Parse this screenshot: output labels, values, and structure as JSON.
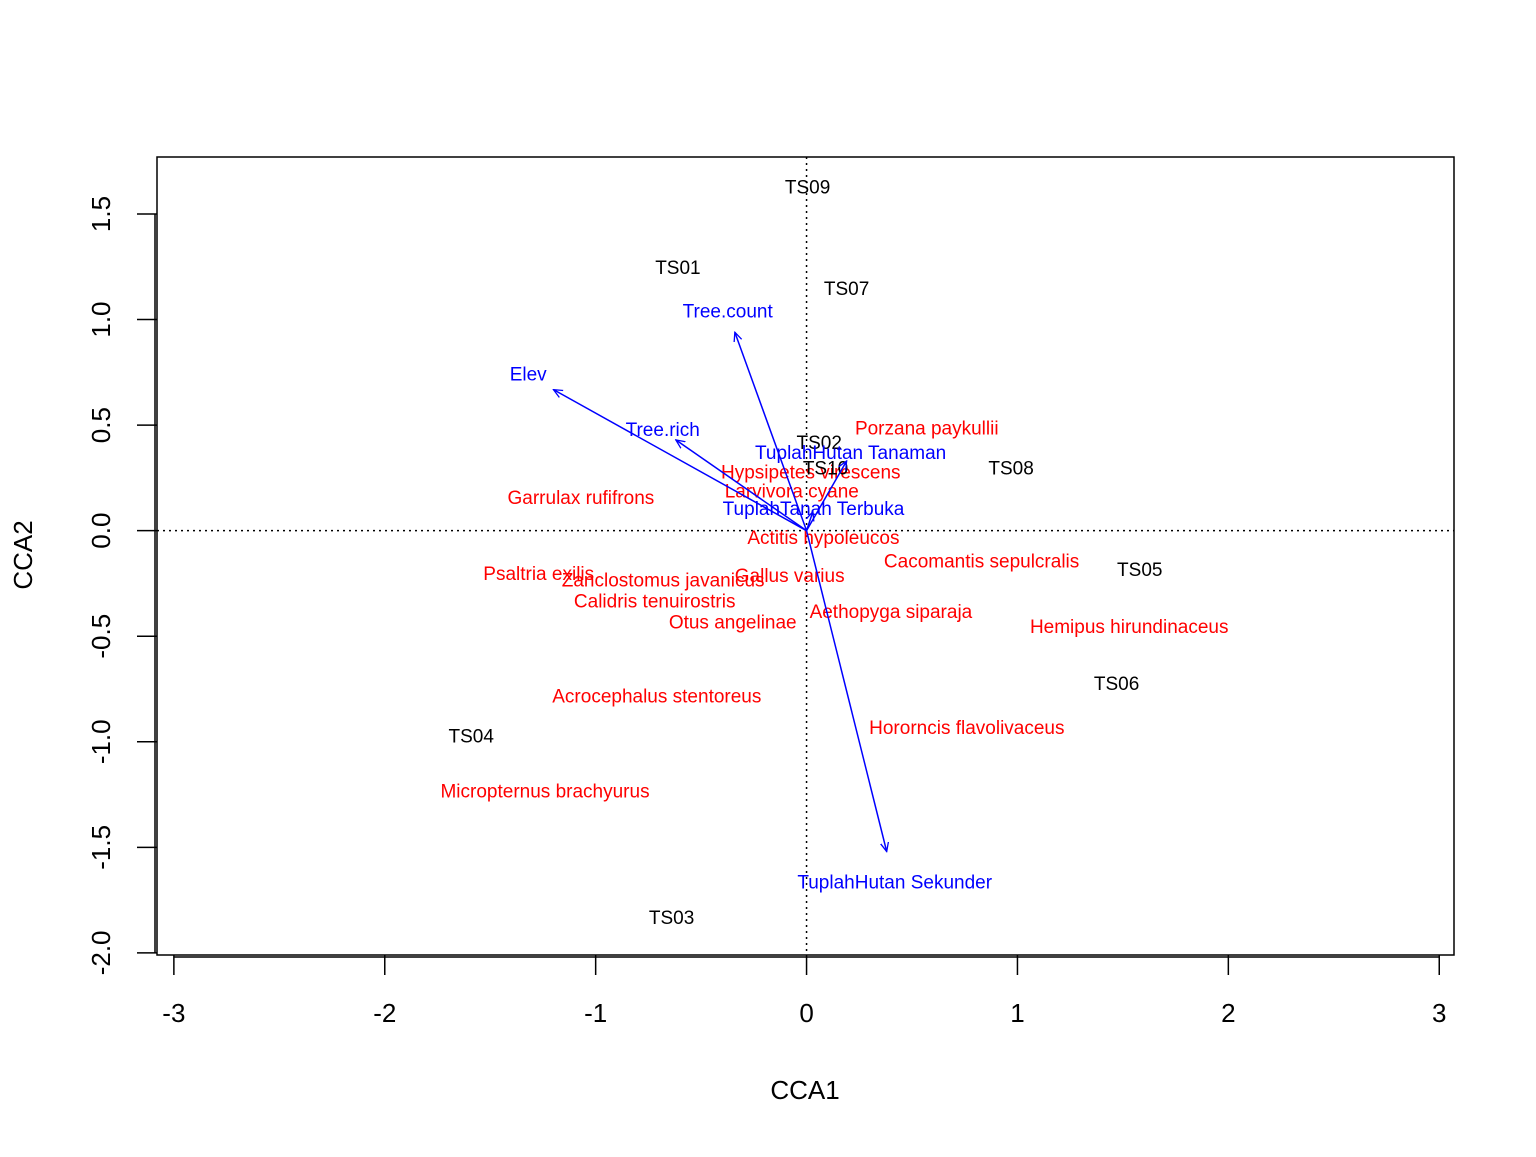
{
  "chart_data": {
    "type": "scatter",
    "x_label": "CCA1",
    "y_label": "CCA2",
    "xlim": [
      -3.08,
      3.07
    ],
    "ylim": [
      -2.01,
      1.77
    ],
    "xticks": [
      -3,
      -2,
      -1,
      0,
      1,
      2,
      3
    ],
    "yticks": [
      {
        "value": -2,
        "label": "-2.0"
      },
      -1.5,
      {
        "value": -1,
        "label": "-1.0"
      },
      -0.5,
      {
        "value": 0,
        "label": "0.0"
      },
      0.5,
      {
        "value": 1,
        "label": "1.0"
      },
      1.5
    ],
    "series": [
      {
        "color": "#ff0000",
        "labels": [
          "Porzana paykullii",
          "Hypsipetes virescens",
          "Larvivora cyane",
          "Garrulax rufifrons",
          "Actitis hypoleucos",
          "Cacomantis sepulcralis",
          "Psaltria exilis",
          "Zanclostomus javanicus",
          "Gallus varius",
          "Calidris tenuirostris",
          "Aethopyga siparaja",
          "Otus angelinae",
          "Hemipus hirundinaceus",
          "Acrocephalus stentoreus",
          "Hororncis flavolivaceus",
          "Micropternus brachyurus"
        ],
        "x": [
          0.57,
          0.02,
          -0.07,
          -1.07,
          0.08,
          0.83,
          -1.27,
          -0.68,
          -0.08,
          -0.72,
          0.4,
          -0.35,
          1.53,
          -0.71,
          0.76,
          -1.24
        ],
        "values": [
          0.48,
          0.27,
          0.18,
          0.15,
          -0.04,
          -0.15,
          -0.21,
          -0.24,
          -0.22,
          -0.34,
          -0.39,
          -0.44,
          -0.46,
          -0.79,
          -0.94,
          -1.24
        ]
      },
      {
        "color": "#000000",
        "labels": [
          "TS09",
          "TS01",
          "TS07",
          "TS02",
          "TS10",
          "TS08",
          "TS05",
          "TS06",
          "TS04",
          "TS03"
        ],
        "x": [
          0.005,
          -0.61,
          0.19,
          0.06,
          0.09,
          0.97,
          1.58,
          1.47,
          -1.59,
          -0.64
        ],
        "values": [
          1.62,
          1.24,
          1.14,
          0.41,
          0.29,
          0.29,
          -0.19,
          -0.73,
          -0.98,
          -1.84
        ]
      }
    ],
    "arrows": {
      "color": "#0000ff",
      "labels": [
        "Tree.count",
        "Elev",
        "Tree.rich",
        "TuplahHutan Sekunder",
        "TuplahHutan Tanaman",
        "TuplahTanah Terbuka"
      ],
      "x": [
        -0.34,
        -1.2,
        -0.62,
        0.38,
        0.19,
        0.03
      ],
      "values": [
        0.94,
        0.668,
        0.43,
        -1.52,
        0.33,
        0.09
      ]
    }
  }
}
